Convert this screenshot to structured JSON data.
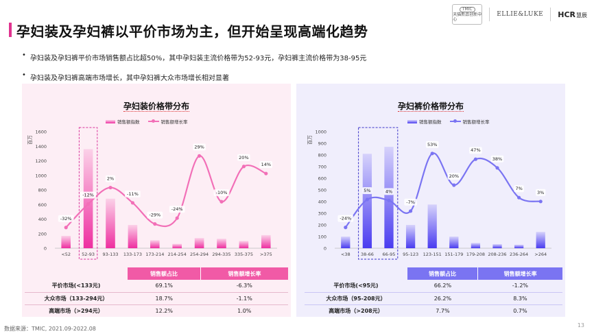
{
  "slide": {
    "title": "孕妇装及孕妇裤以平价市场为主，但开始呈现高端化趋势",
    "bullets": [
      "孕妇装及孕妇裤平价市场销售额占比超50%，其中孕妇装主流价格带为52-93元，孕妇裤主流价格带为38-95元",
      "孕妇装及孕妇裤高端市场增长，其中孕妇裤大众市场增长相对显著"
    ],
    "source": "数据来源：TMIC, 2021.09-2022.08",
    "page_number": "13",
    "logos": {
      "tmic_badge": "TMIC",
      "tmic_text": "天猫新品创新中心",
      "ellie": "ELLIE&LUKE",
      "hcr": "HCR",
      "hcr_cn": "慧辰"
    }
  },
  "colors": {
    "pink": "#ee2fa0",
    "pink_light": "#fbd1e8",
    "blue": "#4a3cf0",
    "blue_light": "#d6d2fb",
    "pink_header": "#f15aa6",
    "blue_header": "#7a74f2"
  },
  "chart_data": [
    {
      "type": "bar+line",
      "title": "孕妇装价格带分布",
      "ylabel": "百万",
      "ylim": [
        0,
        1600
      ],
      "yticks": [
        0,
        200,
        400,
        600,
        800,
        1000,
        1200,
        1400,
        1600
      ],
      "categories": [
        "<52",
        "52-93",
        "93-133",
        "133-173",
        "173-214",
        "214-254",
        "254-294",
        "294-335",
        "335-375",
        ">375"
      ],
      "series": [
        {
          "name": "销售额指数",
          "type": "bar",
          "values": [
            170,
            1360,
            680,
            320,
            110,
            60,
            140,
            130,
            100,
            180
          ]
        },
        {
          "name": "销售额增长率",
          "type": "line",
          "values": [
            -32,
            -12,
            2,
            -11,
            -29,
            -24,
            29,
            -10,
            20,
            14
          ],
          "labels": [
            "-32%",
            "-12%",
            "2%",
            "-11%",
            "-29%",
            "-24%",
            "29%",
            "-10%",
            "20%",
            "14%"
          ],
          "range": [
            -45,
            45
          ]
        }
      ],
      "highlight": "52-93",
      "table": {
        "headers": [
          "",
          "销售额占比",
          "销售额增长率"
        ],
        "rows": [
          [
            "平价市场(<133元)",
            "69.1%",
            "-6.3%"
          ],
          [
            "大众市场（133-294元）",
            "18.7%",
            "-1.1%"
          ],
          [
            "高端市场（>294元）",
            "12.2%",
            "1.0%"
          ]
        ]
      }
    },
    {
      "type": "bar+line",
      "title": "孕妇裤价格带分布",
      "ylabel": "百万",
      "ylim": [
        0,
        1000
      ],
      "yticks": [
        0,
        100,
        200,
        300,
        400,
        500,
        600,
        700,
        800,
        900,
        1000
      ],
      "categories": [
        "<38",
        "38-66",
        "66-95",
        "95-123",
        "123-151",
        "151-179",
        "179-208",
        "208-236",
        "236-264",
        ">264"
      ],
      "series": [
        {
          "name": "销售额指数",
          "type": "bar",
          "values": [
            100,
            810,
            870,
            200,
            375,
            100,
            45,
            35,
            30,
            140
          ]
        },
        {
          "name": "销售额增长率",
          "type": "line",
          "values": [
            -24,
            5,
            4,
            -7,
            53,
            20,
            47,
            38,
            7,
            3
          ],
          "labels": [
            "-24%",
            "5%",
            "4%",
            "-7%",
            "53%",
            "20%",
            "47%",
            "38%",
            "7%",
            "3%"
          ],
          "range": [
            -40,
            70
          ]
        }
      ],
      "highlight": "38-95",
      "table": {
        "headers": [
          "",
          "销售额占比",
          "销售额增长率"
        ],
        "rows": [
          [
            "平价市场(<95元)",
            "66.2%",
            "-1.2%"
          ],
          [
            "大众市场（95-208元）",
            "26.2%",
            "8.3%"
          ],
          [
            "高端市场（>208元）",
            "7.7%",
            "0.7%"
          ]
        ]
      }
    }
  ]
}
